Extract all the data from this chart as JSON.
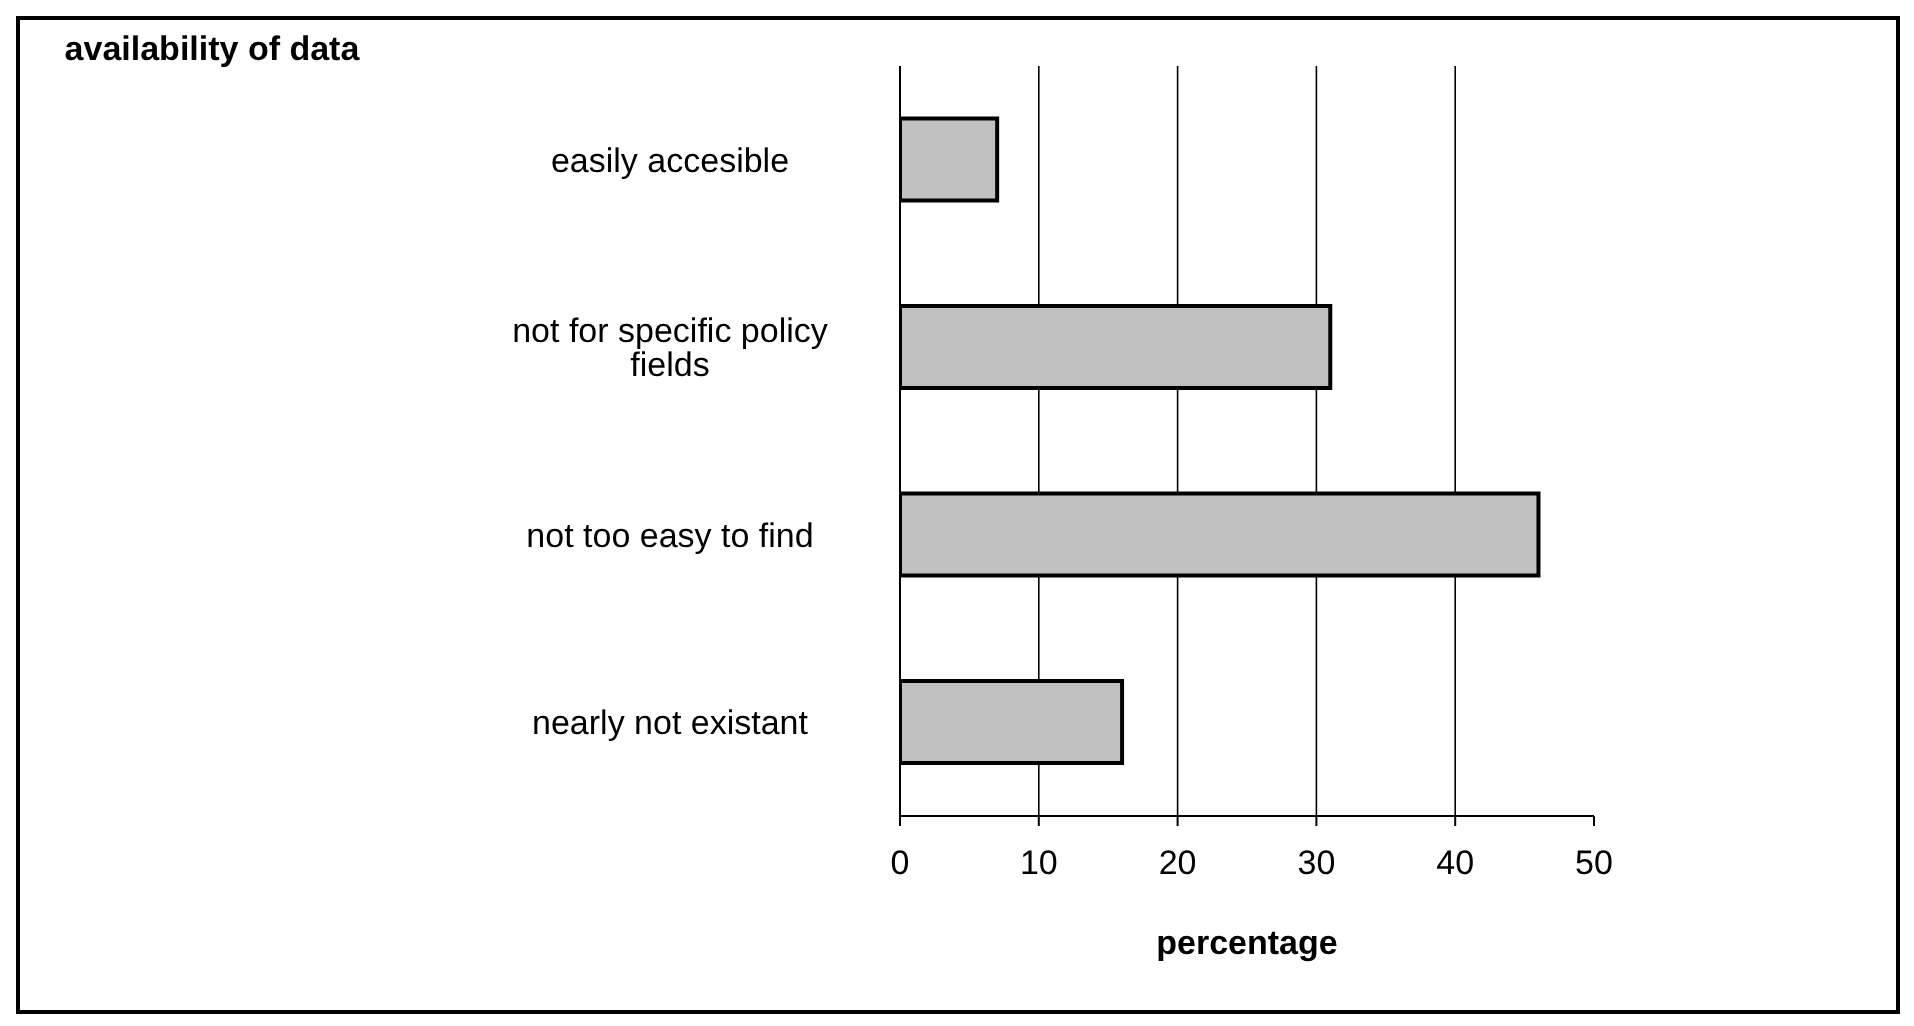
{
  "chart_data": {
    "type": "bar",
    "orientation": "horizontal",
    "title": "availability of data",
    "xlabel": "percentage",
    "categories": [
      "easily accesible",
      "not for specific policy fields",
      "not too easy to find",
      "nearly not existant"
    ],
    "values": [
      7,
      31,
      46,
      16
    ],
    "color": "#c0c0c0",
    "xlim": [
      0,
      50
    ],
    "xticks": [
      0,
      10,
      20,
      30,
      40,
      50
    ],
    "grid": "x",
    "legend": false
  }
}
